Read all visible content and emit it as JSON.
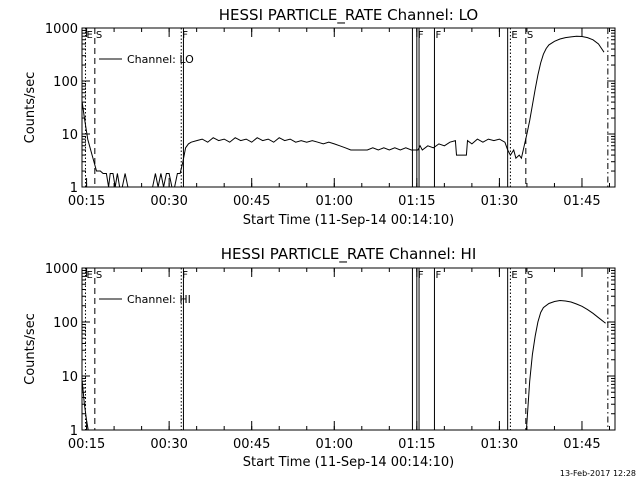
{
  "chart_data": [
    {
      "type": "line",
      "title": "HESSI PARTICLE_RATE Channel: LO",
      "xlabel": "Start Time (11-Sep-14 00:14:10)",
      "ylabel": "Counts/sec",
      "yscale": "log",
      "ylim": [
        1,
        1000
      ],
      "xlim_minutes": [
        14.17,
        111.0
      ],
      "x_ticks": [
        {
          "label": "00:15",
          "value": 15
        },
        {
          "label": "00:30",
          "value": 30
        },
        {
          "label": "00:45",
          "value": 45
        },
        {
          "label": "01:00",
          "value": 60
        },
        {
          "label": "01:15",
          "value": 75
        },
        {
          "label": "01:30",
          "value": 90
        },
        {
          "label": "01:45",
          "value": 105
        }
      ],
      "y_ticks": [
        {
          "label": "1",
          "value": 1
        },
        {
          "label": "10",
          "value": 10
        },
        {
          "label": "100",
          "value": 100
        },
        {
          "label": "1000",
          "value": 1000
        }
      ],
      "legend": {
        "label": "Channel: LO",
        "placement": "top-left"
      },
      "markers": [
        {
          "label": "E",
          "x": 14.8,
          "style": "dotted"
        },
        {
          "label": "S",
          "x": 16.5,
          "style": "dashed"
        },
        {
          "label": "F",
          "x": 32.2,
          "style": "dotted"
        },
        {
          "label": "",
          "x": 32.6,
          "style": "solid"
        },
        {
          "label": "",
          "x": 74.2,
          "style": "solid"
        },
        {
          "label": "F",
          "x": 75.0,
          "style": "solid"
        },
        {
          "label": "",
          "x": 75.4,
          "style": "solid"
        },
        {
          "label": "F",
          "x": 78.2,
          "style": "solid"
        },
        {
          "label": "",
          "x": 91.5,
          "style": "solid"
        },
        {
          "label": "E",
          "x": 92.0,
          "style": "dotted"
        },
        {
          "label": "S",
          "x": 94.8,
          "style": "dashed"
        },
        {
          "label": "",
          "x": 109.7,
          "style": "dashdot"
        }
      ],
      "series": [
        {
          "name": "Channel: LO",
          "points": [
            [
              14.2,
              40
            ],
            [
              14.6,
              20
            ],
            [
              15.2,
              8
            ],
            [
              16.0,
              4
            ],
            [
              16.8,
              2
            ],
            [
              17.5,
              2
            ],
            [
              18.0,
              1.8
            ],
            [
              18.6,
              1.8
            ],
            [
              19.0,
              1
            ],
            [
              19.3,
              1.8
            ],
            [
              19.8,
              1.8
            ],
            [
              20.2,
              1
            ],
            [
              20.6,
              1.8
            ],
            [
              21.0,
              1
            ],
            [
              21.5,
              1
            ],
            [
              22.0,
              1.8
            ],
            [
              22.5,
              1
            ],
            [
              23.0,
              1
            ],
            [
              24.0,
              1
            ],
            [
              25.0,
              1
            ],
            [
              26.0,
              1
            ],
            [
              27.0,
              1
            ],
            [
              27.5,
              1.8
            ],
            [
              28.0,
              1
            ],
            [
              28.5,
              1.8
            ],
            [
              29.0,
              1
            ],
            [
              29.5,
              1.8
            ],
            [
              30.0,
              1.8
            ],
            [
              30.5,
              1
            ],
            [
              31.0,
              1
            ],
            [
              31.5,
              1.8
            ],
            [
              32.0,
              1.8
            ],
            [
              32.5,
              3
            ],
            [
              33.0,
              5.5
            ],
            [
              33.5,
              6.5
            ],
            [
              34.0,
              7
            ],
            [
              35,
              7.5
            ],
            [
              36,
              8
            ],
            [
              37,
              7
            ],
            [
              38,
              8.5
            ],
            [
              39,
              7.5
            ],
            [
              40,
              8
            ],
            [
              41,
              7
            ],
            [
              42,
              8.5
            ],
            [
              43,
              7.5
            ],
            [
              44,
              8
            ],
            [
              45,
              7
            ],
            [
              46,
              8.5
            ],
            [
              47,
              7.5
            ],
            [
              48,
              8
            ],
            [
              49,
              7
            ],
            [
              50,
              8.5
            ],
            [
              51,
              7.5
            ],
            [
              52,
              8
            ],
            [
              53,
              7
            ],
            [
              54,
              7.5
            ],
            [
              55,
              7
            ],
            [
              56,
              7.5
            ],
            [
              57,
              7
            ],
            [
              58,
              6.5
            ],
            [
              59,
              7
            ],
            [
              60,
              6.5
            ],
            [
              61,
              6
            ],
            [
              62,
              5.5
            ],
            [
              63,
              5
            ],
            [
              64,
              5
            ],
            [
              65,
              5
            ],
            [
              66,
              5
            ],
            [
              67,
              5.5
            ],
            [
              68,
              5
            ],
            [
              69,
              5.5
            ],
            [
              70,
              5
            ],
            [
              71,
              5.5
            ],
            [
              72,
              5
            ],
            [
              73,
              5.5
            ],
            [
              74,
              5
            ],
            [
              75.2,
              5
            ],
            [
              75.6,
              6
            ],
            [
              76,
              5
            ],
            [
              77,
              6
            ],
            [
              78,
              5.5
            ],
            [
              79,
              6.5
            ],
            [
              80,
              6
            ],
            [
              81,
              7
            ],
            [
              82,
              7.5
            ],
            [
              82.2,
              4
            ],
            [
              84,
              4
            ],
            [
              84.2,
              7.5
            ],
            [
              85,
              6.5
            ],
            [
              86,
              8
            ],
            [
              87,
              7
            ],
            [
              88,
              8
            ],
            [
              89,
              7.5
            ],
            [
              90,
              8
            ],
            [
              91,
              7
            ],
            [
              91.5,
              5
            ],
            [
              92,
              4
            ],
            [
              92.6,
              5
            ],
            [
              93,
              3.5
            ],
            [
              93.6,
              4
            ],
            [
              94,
              3.5
            ],
            [
              94.5,
              6
            ],
            [
              95,
              10
            ],
            [
              95.5,
              18
            ],
            [
              96,
              35
            ],
            [
              96.5,
              70
            ],
            [
              97,
              130
            ],
            [
              97.5,
              220
            ],
            [
              98,
              320
            ],
            [
              98.5,
              410
            ],
            [
              99,
              480
            ],
            [
              100,
              560
            ],
            [
              101,
              620
            ],
            [
              102,
              660
            ],
            [
              103,
              680
            ],
            [
              104,
              700
            ],
            [
              105,
              690
            ],
            [
              106,
              660
            ],
            [
              107,
              600
            ],
            [
              108,
              500
            ],
            [
              108.5,
              420
            ],
            [
              109,
              350
            ]
          ]
        }
      ]
    },
    {
      "type": "line",
      "title": "HESSI PARTICLE_RATE Channel: HI",
      "xlabel": "Start Time (11-Sep-14 00:14:10)",
      "ylabel": "Counts/sec",
      "yscale": "log",
      "ylim": [
        1,
        1000
      ],
      "xlim_minutes": [
        14.17,
        111.0
      ],
      "x_ticks": [
        {
          "label": "00:15",
          "value": 15
        },
        {
          "label": "00:30",
          "value": 30
        },
        {
          "label": "00:45",
          "value": 45
        },
        {
          "label": "01:00",
          "value": 60
        },
        {
          "label": "01:15",
          "value": 75
        },
        {
          "label": "01:30",
          "value": 90
        },
        {
          "label": "01:45",
          "value": 105
        }
      ],
      "y_ticks": [
        {
          "label": "1",
          "value": 1
        },
        {
          "label": "10",
          "value": 10
        },
        {
          "label": "100",
          "value": 100
        },
        {
          "label": "1000",
          "value": 1000
        }
      ],
      "legend": {
        "label": "Channel: HI",
        "placement": "top-left"
      },
      "markers": [
        {
          "label": "E",
          "x": 14.8,
          "style": "dotted"
        },
        {
          "label": "S",
          "x": 16.5,
          "style": "dashed"
        },
        {
          "label": "F",
          "x": 32.2,
          "style": "dotted"
        },
        {
          "label": "",
          "x": 32.6,
          "style": "solid"
        },
        {
          "label": "",
          "x": 74.2,
          "style": "solid"
        },
        {
          "label": "F",
          "x": 75.0,
          "style": "solid"
        },
        {
          "label": "",
          "x": 75.4,
          "style": "solid"
        },
        {
          "label": "F",
          "x": 78.2,
          "style": "solid"
        },
        {
          "label": "",
          "x": 91.5,
          "style": "solid"
        },
        {
          "label": "E",
          "x": 92.0,
          "style": "dotted"
        },
        {
          "label": "S",
          "x": 94.8,
          "style": "dashed"
        },
        {
          "label": "",
          "x": 109.7,
          "style": "dashdot"
        }
      ],
      "series": [
        {
          "name": "Channel: HI",
          "points": [
            [
              14.2,
              8
            ],
            [
              14.6,
              3
            ],
            [
              15.0,
              1.5
            ],
            [
              15.3,
              1
            ],
            [
              94.9,
              1
            ],
            [
              95.1,
              2
            ],
            [
              95.5,
              8
            ],
            [
              96,
              25
            ],
            [
              96.5,
              55
            ],
            [
              97,
              100
            ],
            [
              97.5,
              150
            ],
            [
              98,
              185
            ],
            [
              99,
              220
            ],
            [
              100,
              240
            ],
            [
              101,
              250
            ],
            [
              102,
              245
            ],
            [
              103,
              235
            ],
            [
              104,
              215
            ],
            [
              105,
              195
            ],
            [
              106,
              170
            ],
            [
              107,
              145
            ],
            [
              108,
              120
            ],
            [
              109,
              100
            ],
            [
              109.3,
              95
            ]
          ]
        }
      ]
    }
  ],
  "footer": "13-Feb-2017 12:28"
}
